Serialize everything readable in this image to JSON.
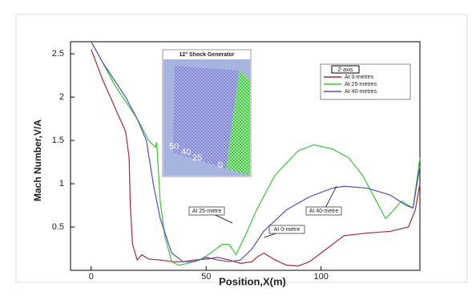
{
  "chart_data": {
    "type": "line",
    "x_label": "Position,X(m)",
    "y_label": "Mach Number,V/A",
    "xlim": [
      -9,
      143
    ],
    "ylim": [
      0,
      2.64
    ],
    "xticks": [
      0,
      50,
      100
    ],
    "yticks": [
      0.5,
      1,
      1.5,
      2,
      2.5
    ],
    "legend_title": "Z-axis",
    "legend_position": "upper right",
    "series": [
      {
        "name": "At 0-metres",
        "color": "#a52a3a",
        "x": [
          0,
          5,
          10,
          15,
          16.5,
          17,
          18,
          20,
          22,
          25,
          30,
          35,
          40,
          45,
          50,
          55,
          60,
          65,
          70,
          72,
          75,
          80,
          85,
          90,
          95,
          100,
          105,
          110,
          120,
          130,
          138,
          141,
          143
        ],
        "values": [
          2.55,
          2.2,
          1.9,
          1.6,
          1.3,
          0.75,
          0.3,
          0.12,
          0.18,
          0.13,
          0.12,
          0.1,
          0.1,
          0.12,
          0.13,
          0.15,
          0.12,
          0.08,
          0.1,
          0.15,
          0.2,
          0.12,
          0.06,
          0.05,
          0.1,
          0.2,
          0.3,
          0.4,
          0.43,
          0.45,
          0.5,
          0.7,
          1.0
        ]
      },
      {
        "name": "At 25-metres",
        "color": "#3cc43c",
        "x": [
          0,
          5,
          10,
          15,
          20,
          25,
          28,
          28.5,
          30,
          32,
          35,
          38,
          42,
          48,
          52,
          57,
          60,
          63,
          67,
          72,
          80,
          90,
          97,
          105,
          112,
          118,
          125,
          128,
          130,
          135,
          140,
          143
        ],
        "values": [
          2.64,
          2.4,
          2.15,
          1.95,
          1.75,
          1.5,
          1.42,
          1.48,
          0.8,
          0.4,
          0.1,
          0.06,
          0.08,
          0.13,
          0.2,
          0.3,
          0.3,
          0.18,
          0.4,
          0.7,
          1.1,
          1.38,
          1.45,
          1.4,
          1.3,
          1.1,
          0.75,
          0.6,
          0.65,
          0.8,
          0.72,
          1.3
        ]
      },
      {
        "name": "At 40-metres",
        "color": "#5050c0",
        "x": [
          0,
          5,
          10,
          15,
          20,
          24,
          27,
          30,
          35,
          40,
          45,
          50,
          55,
          60,
          65,
          70,
          75,
          85,
          95,
          105,
          110,
          120,
          130,
          137,
          140,
          143
        ],
        "values": [
          2.64,
          2.4,
          2.2,
          2.0,
          1.75,
          1.5,
          1.0,
          0.6,
          0.2,
          0.1,
          0.1,
          0.15,
          0.12,
          0.1,
          0.12,
          0.25,
          0.45,
          0.7,
          0.85,
          0.95,
          0.97,
          0.95,
          0.87,
          0.75,
          0.72,
          1.2
        ]
      }
    ],
    "annotations": [
      "At 25-metre",
      "At 40-metre",
      "At 0-metre"
    ],
    "inset": {
      "title": "12° Shock Generator",
      "labels": [
        "50",
        "40",
        "25",
        "0"
      ]
    }
  }
}
